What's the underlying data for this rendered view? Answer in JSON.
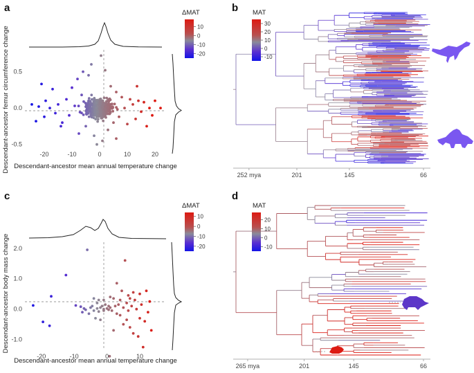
{
  "figure_title": "Descendant–ancestor temperature change panels with phylogenies",
  "colors": {
    "cold": "#1414e6",
    "mid": "#8a8a9a",
    "hot": "#dd1a12",
    "purple_mid": "#5a2fd0",
    "silhouette_b": "#7a57f0",
    "silhouette_d_purple": "#5c36c8",
    "silhouette_d_red": "#dd1a12"
  },
  "panels": {
    "a": {
      "label": "a"
    },
    "b": {
      "label": "b"
    },
    "c": {
      "label": "c"
    },
    "d": {
      "label": "d"
    }
  },
  "chart_data": [
    {
      "panel": "a",
      "type": "scatter",
      "xlabel": "Descendant-ancestor mean annual temperature change",
      "ylabel": "Descendant-ancestor femur circumference change",
      "xlim": [
        -27,
        24
      ],
      "ylim": [
        -0.55,
        0.8
      ],
      "xticks": [
        -20,
        -10,
        0,
        10,
        20
      ],
      "xtick_labels": [
        "-20",
        "-10",
        "0",
        "10",
        "20"
      ],
      "yticks": [
        -0.5,
        0.0,
        0.5
      ],
      "ytick_labels": [
        "-0.5",
        "0.0",
        "0.5"
      ],
      "reference_lines": {
        "x": 0,
        "y": 0,
        "style": "dashed"
      },
      "marginal_density": {
        "top": true,
        "right": true
      },
      "colorbar": {
        "title": "ΔMAT",
        "ticks": [
          10,
          0,
          -10,
          -20
        ],
        "tick_labels": [
          "10",
          "0",
          "-10",
          "-20"
        ],
        "range": [
          -25,
          18
        ]
      },
      "n_points": 420,
      "points_note": "dense cloud centred at 0, x spread ~±25, y spread ~±0.5; colour maps ΔMAT (blue=cold, red=warm)",
      "points": [
        [
          -24.5,
          0.05
        ],
        [
          -23,
          -0.18
        ],
        [
          -22,
          0.02
        ],
        [
          -21,
          0.33
        ],
        [
          -20,
          -0.12
        ],
        [
          -19.5,
          0.1
        ],
        [
          -18,
          0.0
        ],
        [
          -17,
          0.26
        ],
        [
          -16,
          -0.07
        ],
        [
          -15,
          0.05
        ],
        [
          -13.5,
          -0.2
        ],
        [
          -12,
          0.12
        ],
        [
          -11,
          -0.1
        ],
        [
          -10,
          0.28
        ],
        [
          -9,
          0.03
        ],
        [
          -8,
          0.4
        ],
        [
          -7.5,
          -0.35
        ],
        [
          -6.5,
          0.18
        ],
        [
          -5,
          -0.25
        ],
        [
          -4,
          0.45
        ],
        [
          -3,
          0.6
        ],
        [
          -2,
          -0.38
        ],
        [
          -1,
          -0.5
        ],
        [
          0.5,
          0.72
        ],
        [
          1,
          -0.45
        ],
        [
          2,
          0.52
        ],
        [
          3,
          -0.3
        ],
        [
          4,
          0.3
        ],
        [
          5,
          -0.2
        ],
        [
          6,
          0.22
        ],
        [
          7,
          -0.12
        ],
        [
          8,
          0.15
        ],
        [
          9,
          0.0
        ],
        [
          10,
          -0.22
        ],
        [
          11,
          0.12
        ],
        [
          12,
          0.05
        ],
        [
          13,
          -0.15
        ],
        [
          14,
          0.1
        ],
        [
          15,
          -0.05
        ],
        [
          16,
          0.08
        ],
        [
          17,
          -0.25
        ],
        [
          18,
          0.0
        ],
        [
          19,
          -0.1
        ],
        [
          20,
          0.1
        ],
        [
          22,
          0.0
        ],
        [
          -6,
          0.5
        ],
        [
          6,
          -0.42
        ],
        [
          -14,
          -0.25
        ],
        [
          13.5,
          0.3
        ]
      ]
    },
    {
      "panel": "b",
      "type": "phylogeny",
      "colorbar": {
        "title": "MAT",
        "ticks": [
          30,
          20,
          10,
          0,
          -10
        ],
        "tick_labels": [
          "30",
          "20",
          "10",
          "0",
          "-10"
        ],
        "range": [
          -15,
          35
        ]
      },
      "time_axis": {
        "ticks": [
          252,
          201,
          145,
          66
        ],
        "tick_labels": [
          "252 mya",
          "201",
          "145",
          "66"
        ],
        "range": [
          260,
          66
        ]
      },
      "n_tips": 200,
      "silhouettes": [
        "ornithopod",
        "ceratopsian"
      ]
    },
    {
      "panel": "c",
      "type": "scatter",
      "xlabel": "Descendant-ancestor mean annual temperature change",
      "ylabel": "Descendant-ancestor body mass change",
      "xlim": [
        -25,
        18
      ],
      "ylim": [
        -1.35,
        2.2
      ],
      "xticks": [
        -20,
        -10,
        0,
        10
      ],
      "xtick_labels": [
        "-20",
        "-10",
        "0",
        "10"
      ],
      "yticks": [
        -1.0,
        0.0,
        1.0,
        2.0
      ],
      "ytick_labels": [
        "-1.0",
        "0.0",
        "1.0",
        "2.0"
      ],
      "reference_lines": {
        "x": 0,
        "y": 0,
        "style": "dashed"
      },
      "marginal_density": {
        "top": true,
        "right": true
      },
      "colorbar": {
        "title": "ΔMAT",
        "ticks": [
          10,
          0,
          -10,
          -20
        ],
        "tick_labels": [
          "10",
          "0",
          "-10",
          "-20"
        ],
        "range": [
          -25,
          14
        ]
      },
      "points": [
        [
          -22.5,
          0.12
        ],
        [
          -19.5,
          -0.42
        ],
        [
          -17.5,
          -0.55
        ],
        [
          -17,
          0.42
        ],
        [
          -12.5,
          1.12
        ],
        [
          -9.5,
          0.12
        ],
        [
          -8,
          0.08
        ],
        [
          -7.5,
          -0.1
        ],
        [
          -7,
          0.02
        ],
        [
          -6.5,
          -0.02
        ],
        [
          -6,
          1.95
        ],
        [
          -5.5,
          -0.15
        ],
        [
          -5,
          0.05
        ],
        [
          -4.5,
          0.1
        ],
        [
          -4,
          -0.05
        ],
        [
          -4,
          0.35
        ],
        [
          -3.5,
          -0.3
        ],
        [
          -3,
          0.02
        ],
        [
          -3,
          0.2
        ],
        [
          -2.5,
          -0.08
        ],
        [
          -2,
          0.05
        ],
        [
          -2,
          -0.35
        ],
        [
          -1.5,
          0.1
        ],
        [
          -1,
          0.0
        ],
        [
          -1,
          -0.05
        ],
        [
          -0.5,
          0.15
        ],
        [
          0.0,
          0.02
        ],
        [
          0.5,
          -0.02
        ],
        [
          0.5,
          0.1
        ],
        [
          1,
          0.05
        ],
        [
          1,
          0.4
        ],
        [
          1.5,
          -0.05
        ],
        [
          0.8,
          -1.55
        ],
        [
          2,
          0.35
        ],
        [
          2.5,
          0.1
        ],
        [
          3,
          0.85
        ],
        [
          3.5,
          0.15
        ],
        [
          4,
          0.3
        ],
        [
          4,
          -0.2
        ],
        [
          4.5,
          0.6
        ],
        [
          5,
          -0.5
        ],
        [
          5,
          0.05
        ],
        [
          5.5,
          1.6
        ],
        [
          6,
          0.2
        ],
        [
          6,
          -0.35
        ],
        [
          6.5,
          -0.05
        ],
        [
          7,
          0.35
        ],
        [
          7,
          -0.6
        ],
        [
          7.5,
          0.1
        ],
        [
          8,
          -0.8
        ],
        [
          8.5,
          0.3
        ],
        [
          9,
          0.0
        ],
        [
          9.5,
          -0.9
        ],
        [
          10,
          0.5
        ],
        [
          10,
          -0.3
        ],
        [
          10.5,
          0.15
        ],
        [
          11,
          -1.25
        ],
        [
          11.5,
          -0.4
        ],
        [
          12,
          0.6
        ],
        [
          12.5,
          -0.1
        ],
        [
          13,
          0.25
        ],
        [
          13.5,
          -0.7
        ],
        [
          8,
          0.55
        ],
        [
          6.5,
          0.45
        ],
        [
          3,
          -0.15
        ],
        [
          2,
          -0.7
        ],
        [
          -1,
          0.3
        ],
        [
          -2.5,
          0.3
        ]
      ]
    },
    {
      "panel": "d",
      "type": "phylogeny",
      "colorbar": {
        "title": "MAT",
        "ticks": [
          20,
          10,
          0,
          -10
        ],
        "tick_labels": [
          "20",
          "10",
          "0",
          "-10"
        ],
        "range": [
          -15,
          28
        ]
      },
      "time_axis": {
        "ticks": [
          265,
          201,
          145,
          66
        ],
        "tick_labels": [
          "265 mya",
          "201",
          "145",
          "66"
        ],
        "range": [
          272,
          66
        ]
      },
      "n_tips": 62,
      "silhouettes": [
        "armadillo-like mammal",
        "small red mammal"
      ]
    }
  ]
}
